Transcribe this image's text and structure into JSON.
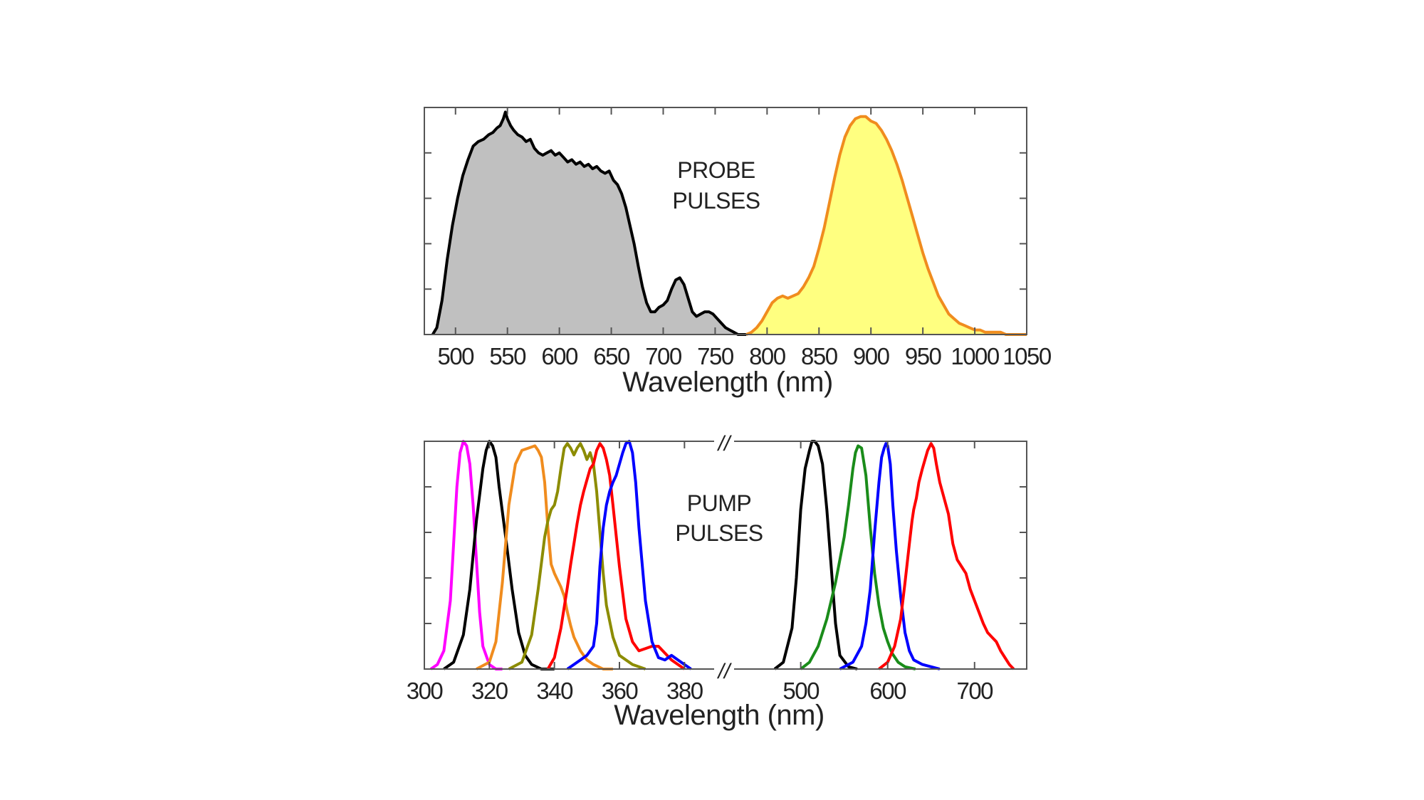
{
  "chart_data": [
    {
      "type": "area",
      "annotation": [
        "PROBE",
        "PULSES"
      ],
      "xlabel": "Wavelength (nm)",
      "ylabel": "",
      "xlim": [
        470,
        1050
      ],
      "ylim": [
        0,
        1.0
      ],
      "xticks": [
        500,
        550,
        600,
        650,
        700,
        750,
        800,
        850,
        900,
        950,
        1000,
        1050
      ],
      "xtick_labels": [
        "500",
        "550",
        "600",
        "650",
        "700",
        "750",
        "800",
        "850",
        "900",
        "950",
        "1000",
        "1050"
      ],
      "grid": false,
      "series": [
        {
          "color": "#000000",
          "fill": "#c0c0c0",
          "x": [
            478,
            482,
            487,
            492,
            497,
            502,
            507,
            512,
            517,
            522,
            527,
            532,
            536,
            540,
            543,
            546,
            548,
            550,
            553,
            556,
            560,
            564,
            568,
            572,
            576,
            580,
            584,
            588,
            592,
            596,
            600,
            604,
            608,
            612,
            616,
            620,
            624,
            628,
            632,
            636,
            640,
            644,
            648,
            652,
            656,
            660,
            664,
            668,
            672,
            676,
            680,
            684,
            688,
            692,
            696,
            700,
            704,
            708,
            712,
            716,
            720,
            724,
            728,
            732,
            736,
            740,
            744,
            748,
            752,
            756,
            760,
            764,
            768,
            772,
            776,
            780
          ],
          "y": [
            0.0,
            0.03,
            0.15,
            0.33,
            0.48,
            0.6,
            0.7,
            0.77,
            0.83,
            0.85,
            0.86,
            0.88,
            0.89,
            0.91,
            0.92,
            0.95,
            0.98,
            0.95,
            0.92,
            0.9,
            0.88,
            0.87,
            0.85,
            0.86,
            0.82,
            0.8,
            0.79,
            0.8,
            0.81,
            0.79,
            0.8,
            0.78,
            0.76,
            0.77,
            0.75,
            0.76,
            0.74,
            0.75,
            0.73,
            0.74,
            0.72,
            0.71,
            0.72,
            0.68,
            0.66,
            0.62,
            0.56,
            0.48,
            0.4,
            0.3,
            0.21,
            0.14,
            0.1,
            0.1,
            0.12,
            0.13,
            0.15,
            0.2,
            0.24,
            0.25,
            0.22,
            0.16,
            0.1,
            0.08,
            0.09,
            0.1,
            0.1,
            0.09,
            0.07,
            0.05,
            0.03,
            0.02,
            0.01,
            0.0,
            0.0,
            0.0
          ]
        },
        {
          "color": "#f08c1e",
          "fill": "#ffff80",
          "x": [
            780,
            785,
            790,
            795,
            800,
            805,
            810,
            815,
            820,
            825,
            830,
            835,
            840,
            845,
            850,
            855,
            860,
            865,
            870,
            875,
            880,
            885,
            890,
            895,
            900,
            905,
            910,
            915,
            920,
            925,
            930,
            935,
            940,
            945,
            950,
            955,
            960,
            965,
            970,
            975,
            980,
            985,
            990,
            995,
            1000,
            1005,
            1010,
            1015,
            1020,
            1025,
            1030,
            1035,
            1040,
            1045,
            1050
          ],
          "y": [
            0.0,
            0.01,
            0.03,
            0.06,
            0.1,
            0.14,
            0.16,
            0.17,
            0.16,
            0.17,
            0.18,
            0.21,
            0.25,
            0.3,
            0.38,
            0.47,
            0.58,
            0.69,
            0.79,
            0.87,
            0.92,
            0.95,
            0.96,
            0.96,
            0.94,
            0.93,
            0.9,
            0.86,
            0.81,
            0.75,
            0.68,
            0.6,
            0.52,
            0.44,
            0.36,
            0.29,
            0.23,
            0.17,
            0.13,
            0.09,
            0.07,
            0.05,
            0.04,
            0.03,
            0.02,
            0.02,
            0.01,
            0.01,
            0.01,
            0.01,
            0.0,
            0.0,
            0.0,
            0.0,
            0.0
          ]
        }
      ]
    },
    {
      "type": "line",
      "annotation": [
        "PUMP",
        "PULSES"
      ],
      "xlabel": "Wavelength (nm)",
      "ylabel": "",
      "axis_break": "//",
      "segments": [
        {
          "xlim": [
            300,
            390
          ],
          "xticks": [
            300,
            320,
            340,
            360,
            380
          ],
          "xtick_labels": [
            "300",
            "320",
            "340",
            "360",
            "380"
          ]
        },
        {
          "xlim": [
            420,
            760
          ],
          "xticks": [
            500,
            600,
            700
          ],
          "xtick_labels": [
            "500",
            "600",
            "700"
          ]
        }
      ],
      "ylim": [
        0,
        1.0
      ],
      "grid": false,
      "series": [
        {
          "color": "#ff00ff",
          "segment": 0,
          "x": [
            302,
            304,
            306,
            308,
            309,
            310,
            311,
            312,
            313,
            314,
            315,
            316,
            317,
            318,
            320,
            322,
            324
          ],
          "y": [
            0.0,
            0.02,
            0.08,
            0.3,
            0.55,
            0.8,
            0.95,
            1.0,
            0.98,
            0.9,
            0.72,
            0.48,
            0.25,
            0.1,
            0.02,
            0.0,
            0.0
          ]
        },
        {
          "color": "#000000",
          "segment": 0,
          "x": [
            306,
            309,
            312,
            314,
            316,
            318,
            319,
            320,
            321,
            322,
            323,
            325,
            327,
            329,
            331,
            333,
            336,
            340
          ],
          "y": [
            0.0,
            0.03,
            0.15,
            0.35,
            0.65,
            0.88,
            0.96,
            1.0,
            0.98,
            0.93,
            0.8,
            0.58,
            0.35,
            0.16,
            0.06,
            0.02,
            0.0,
            0.0
          ]
        },
        {
          "color": "#f08c1e",
          "segment": 0,
          "x": [
            316,
            320,
            322,
            324,
            326,
            328,
            330,
            332,
            334,
            335,
            336,
            337,
            338,
            339,
            340,
            341,
            342,
            343,
            344,
            345,
            346,
            348,
            350,
            352,
            355,
            358
          ],
          "y": [
            0.0,
            0.03,
            0.12,
            0.38,
            0.72,
            0.9,
            0.96,
            0.97,
            0.98,
            0.96,
            0.93,
            0.82,
            0.62,
            0.46,
            0.42,
            0.39,
            0.36,
            0.32,
            0.25,
            0.19,
            0.14,
            0.08,
            0.04,
            0.02,
            0.0,
            0.0
          ]
        },
        {
          "color": "#8c8c00",
          "segment": 0,
          "x": [
            326,
            330,
            333,
            335,
            337,
            338,
            339,
            340,
            341,
            342,
            343,
            344,
            345,
            346,
            347,
            348,
            349,
            350,
            351,
            352,
            353,
            354,
            355,
            356,
            358,
            360,
            364,
            368
          ],
          "y": [
            0.0,
            0.03,
            0.15,
            0.35,
            0.58,
            0.65,
            0.7,
            0.72,
            0.78,
            0.88,
            0.97,
            0.99,
            0.97,
            0.94,
            0.97,
            0.99,
            0.96,
            0.92,
            0.95,
            0.9,
            0.78,
            0.6,
            0.42,
            0.28,
            0.14,
            0.06,
            0.02,
            0.0
          ]
        },
        {
          "color": "#ff0000",
          "segment": 0,
          "x": [
            338,
            340,
            342,
            344,
            345,
            346,
            347,
            348,
            349,
            350,
            351,
            352,
            353,
            354,
            355,
            356,
            357,
            358,
            360,
            362,
            364,
            366,
            368,
            370,
            372,
            374,
            376,
            378,
            380
          ],
          "y": [
            0.0,
            0.05,
            0.18,
            0.36,
            0.46,
            0.55,
            0.64,
            0.72,
            0.78,
            0.83,
            0.88,
            0.9,
            0.96,
            0.99,
            0.97,
            0.92,
            0.85,
            0.72,
            0.45,
            0.22,
            0.12,
            0.08,
            0.09,
            0.1,
            0.1,
            0.07,
            0.04,
            0.02,
            0.0
          ]
        },
        {
          "color": "#0000ff",
          "segment": 0,
          "x": [
            344,
            346,
            348,
            350,
            352,
            353,
            354,
            355,
            356,
            357,
            358,
            359,
            360,
            361,
            362,
            363,
            364,
            365,
            366,
            368,
            370,
            372,
            374,
            376,
            378,
            380,
            382
          ],
          "y": [
            0.0,
            0.02,
            0.04,
            0.06,
            0.1,
            0.2,
            0.45,
            0.62,
            0.72,
            0.78,
            0.82,
            0.85,
            0.9,
            0.95,
            0.99,
            1.0,
            0.95,
            0.82,
            0.62,
            0.3,
            0.12,
            0.05,
            0.04,
            0.06,
            0.04,
            0.02,
            0.0
          ]
        },
        {
          "color": "#000000",
          "segment": 1,
          "x": [
            470,
            480,
            490,
            495,
            500,
            505,
            510,
            513,
            516,
            520,
            525,
            530,
            535,
            540,
            545,
            555,
            565
          ],
          "y": [
            0.0,
            0.03,
            0.18,
            0.4,
            0.7,
            0.88,
            0.96,
            1.0,
            1.0,
            0.98,
            0.9,
            0.7,
            0.45,
            0.2,
            0.06,
            0.01,
            0.0
          ]
        },
        {
          "color": "#1a8c1a",
          "segment": 1,
          "x": [
            500,
            510,
            520,
            530,
            535,
            540,
            545,
            550,
            555,
            560,
            563,
            566,
            570,
            575,
            580,
            585,
            590,
            595,
            600,
            605,
            612,
            620,
            632
          ],
          "y": [
            0.0,
            0.03,
            0.1,
            0.22,
            0.3,
            0.38,
            0.48,
            0.58,
            0.72,
            0.88,
            0.95,
            0.98,
            0.97,
            0.85,
            0.62,
            0.42,
            0.28,
            0.18,
            0.12,
            0.07,
            0.03,
            0.01,
            0.0
          ]
        },
        {
          "color": "#0000ff",
          "segment": 1,
          "x": [
            545,
            560,
            570,
            575,
            580,
            585,
            590,
            593,
            596,
            598,
            600,
            603,
            606,
            610,
            615,
            620,
            625,
            630,
            640,
            650,
            660
          ],
          "y": [
            0.0,
            0.03,
            0.1,
            0.2,
            0.35,
            0.6,
            0.82,
            0.93,
            0.97,
            0.99,
            0.98,
            0.9,
            0.72,
            0.52,
            0.32,
            0.16,
            0.08,
            0.04,
            0.02,
            0.01,
            0.0
          ]
        },
        {
          "color": "#ff0000",
          "segment": 1,
          "x": [
            590,
            600,
            608,
            615,
            620,
            625,
            628,
            630,
            633,
            636,
            640,
            643,
            646,
            650,
            653,
            656,
            660,
            665,
            670,
            675,
            680,
            685,
            690,
            695,
            700,
            705,
            710,
            715,
            720,
            725,
            730,
            735,
            740,
            745
          ],
          "y": [
            0.0,
            0.03,
            0.1,
            0.22,
            0.38,
            0.55,
            0.65,
            0.7,
            0.75,
            0.82,
            0.88,
            0.92,
            0.96,
            0.99,
            0.97,
            0.9,
            0.82,
            0.75,
            0.68,
            0.55,
            0.48,
            0.45,
            0.42,
            0.35,
            0.3,
            0.25,
            0.2,
            0.16,
            0.14,
            0.12,
            0.08,
            0.05,
            0.02,
            0.0
          ]
        }
      ]
    }
  ]
}
